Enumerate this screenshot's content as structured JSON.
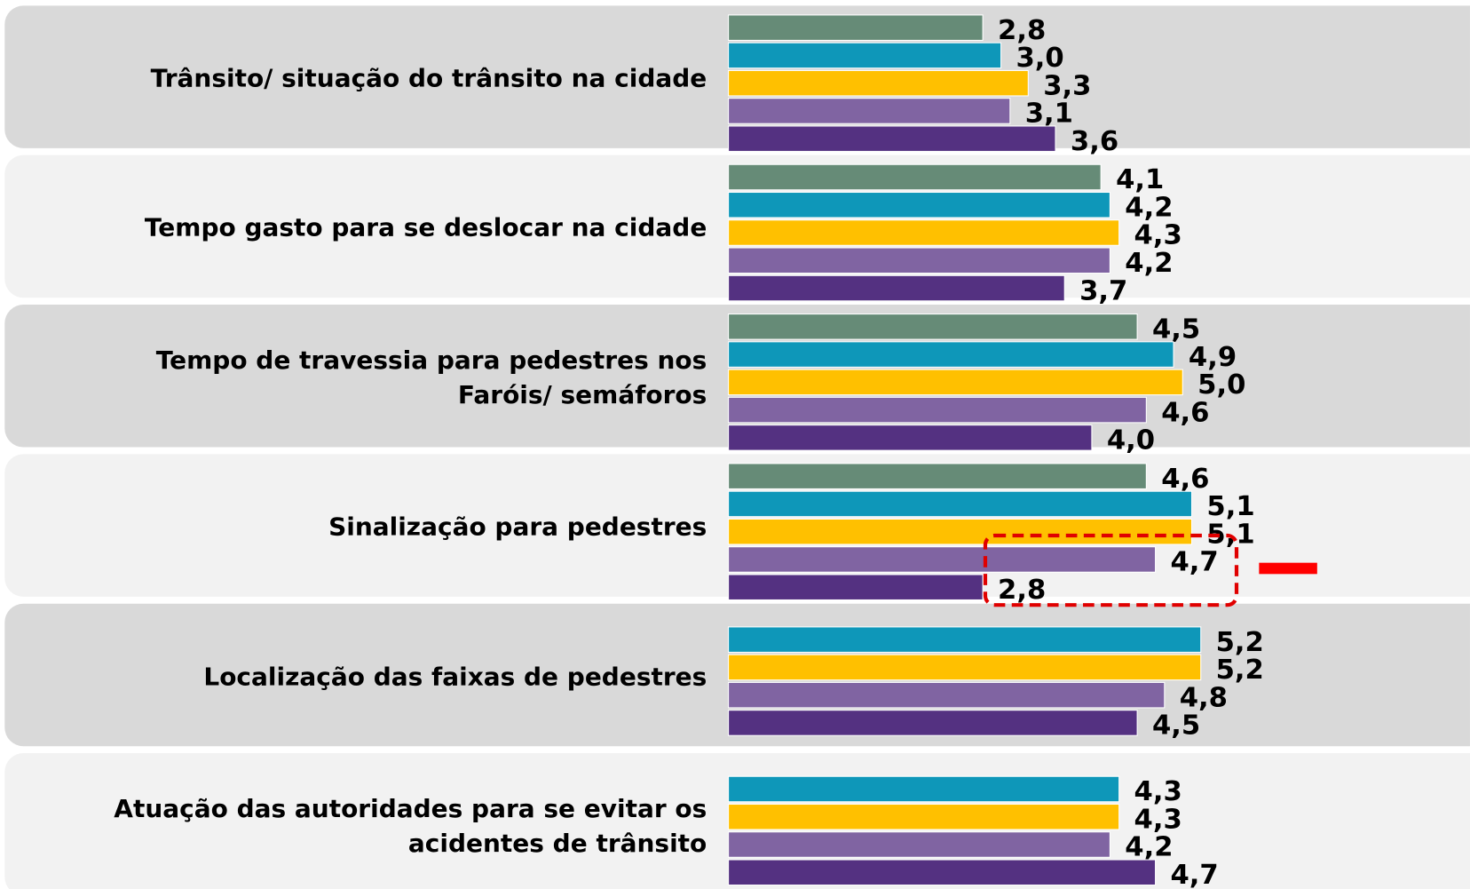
{
  "chart_data": {
    "type": "bar",
    "orientation": "horizontal",
    "categories": [
      "Trânsito/ situação do trânsito na cidade",
      "Tempo gasto para se deslocar na cidade",
      "Tempo de travessia para pedestres nos\nFaróis/ semáforos",
      "Sinalização para pedestres",
      "Localização das faixas de pedestres",
      "Atuação das autoridades para se evitar os\nacidentes de trânsito"
    ],
    "series": [
      {
        "color": "#668b77",
        "values": [
          2.8,
          4.1,
          4.5,
          4.6,
          null,
          null
        ],
        "value_labels": [
          "2,8",
          "4,1",
          "4,5",
          "4,6",
          null,
          null
        ]
      },
      {
        "color": "#0e97b9",
        "values": [
          3.0,
          4.2,
          4.9,
          5.1,
          5.2,
          4.3
        ],
        "value_labels": [
          "3,0",
          "4,2",
          "4,9",
          "5,1",
          "5,2",
          "4,3"
        ]
      },
      {
        "color": "#ffc000",
        "values": [
          3.3,
          4.3,
          5.0,
          5.1,
          5.2,
          4.3
        ],
        "value_labels": [
          "3,3",
          "4,3",
          "5,0",
          "5,1",
          "5,2",
          "4,3"
        ]
      },
      {
        "color": "#8064a2",
        "values": [
          3.1,
          4.2,
          4.6,
          4.7,
          4.8,
          4.2
        ],
        "value_labels": [
          "3,1",
          "4,2",
          "4,6",
          "4,7",
          "4,8",
          "4,2"
        ]
      },
      {
        "color": "#543181",
        "values": [
          3.6,
          3.7,
          4.0,
          2.8,
          4.5,
          4.7
        ],
        "value_labels": [
          "3,6",
          "3,7",
          "4,0",
          "2,8",
          "4,5",
          "4,7"
        ]
      }
    ]
  }
}
